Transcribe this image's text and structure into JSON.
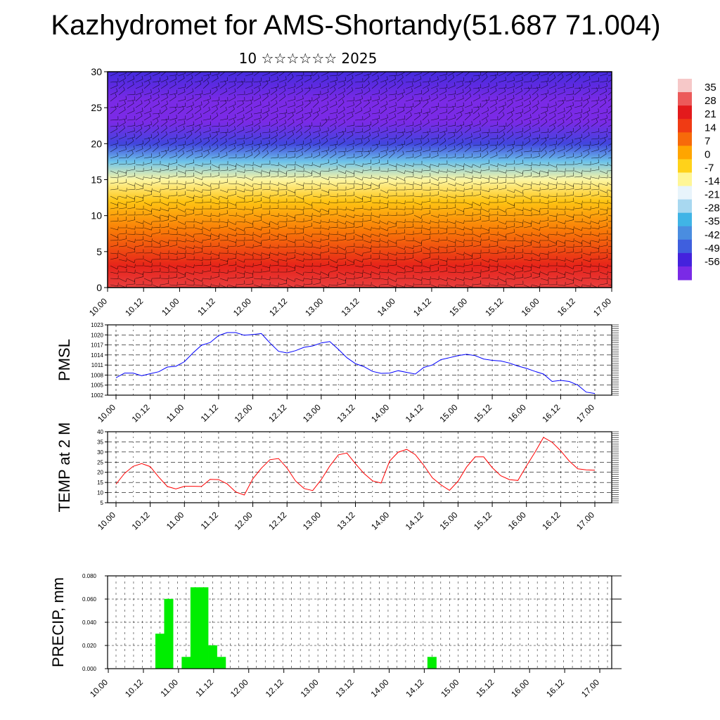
{
  "title": "Kazhydromet for AMS-Shortandy(51.687 71.004)",
  "subtitle": "10 ☆☆☆☆☆☆ 2025",
  "colors": {
    "pressure_line": "#0000ff",
    "temperature_line": "#ff0000",
    "precip_bar": "#00ee00",
    "frame": "#000000",
    "grid": "#000000"
  },
  "chart_data": [
    {
      "type": "heatmap",
      "title": "",
      "ylabel": "",
      "ylim": [
        0,
        30
      ],
      "yticks": [
        "0",
        "5",
        "10",
        "15",
        "20",
        "25",
        "30"
      ],
      "xticks": [
        "10.00",
        "10.12",
        "11.00",
        "11.12",
        "12.00",
        "12.12",
        "13.00",
        "13.12",
        "14.00",
        "14.12",
        "15.00",
        "15.12",
        "16.00",
        "16.12",
        "17.00"
      ],
      "overlay": "wind barbs",
      "colorbar": {
        "labels": [
          "35",
          "28",
          "21",
          "14",
          "7",
          "0",
          "-7",
          "-14",
          "-21",
          "-28",
          "-35",
          "-42",
          "-49",
          "-56"
        ],
        "colors": [
          "#f6c8c8",
          "#ec5a5a",
          "#e31a1c",
          "#f03b14",
          "#f76a0a",
          "#ffa500",
          "#ffd21a",
          "#fff696",
          "#e8f4fb",
          "#a8d8f0",
          "#40b4e6",
          "#4a8de0",
          "#3f5fde",
          "#4422dd",
          "#7a2ae6"
        ]
      },
      "levels_km": [
        "0",
        "5",
        "10",
        "15",
        "20",
        "25",
        "30"
      ],
      "temperature_profile_C": [
        32,
        26,
        12,
        2,
        -8,
        -25,
        -45,
        -58,
        -56,
        -48
      ],
      "profile_heights_km": [
        0,
        3,
        8,
        12,
        15,
        17.5,
        20,
        23,
        26,
        30
      ]
    },
    {
      "type": "line",
      "ylabel": "PMSL",
      "ylim": [
        1002,
        1023
      ],
      "yticks": [
        "1002",
        "1005",
        "1008",
        "1011",
        "1014",
        "1017",
        "1020",
        "1023"
      ],
      "xticks": [
        "10.00",
        "10.12",
        "11.00",
        "11.12",
        "12.00",
        "12.12",
        "13.00",
        "13.12",
        "14.00",
        "14.12",
        "15.00",
        "15.12",
        "16.00",
        "16.12",
        "17.00"
      ],
      "x_hours": [
        0,
        3,
        6,
        9,
        12,
        15,
        18,
        21,
        24,
        27,
        30,
        33,
        36,
        39,
        42,
        45,
        48,
        51,
        54,
        57,
        60,
        63,
        66,
        69,
        72,
        75,
        78,
        81,
        84,
        87,
        90,
        93,
        96,
        99,
        102,
        105,
        108,
        111,
        114,
        117,
        120,
        123,
        126,
        129,
        132,
        135,
        138,
        141,
        144,
        147,
        150,
        153,
        156,
        159,
        162,
        165,
        168
      ],
      "series": [
        {
          "values": [
            1007.2,
            1008.6,
            1008.6,
            1007.8,
            1008.4,
            1009.0,
            1010.4,
            1010.6,
            1012.0,
            1014.6,
            1016.9,
            1017.7,
            1019.8,
            1020.7,
            1020.7,
            1019.9,
            1020.1,
            1020.4,
            1017.6,
            1015.1,
            1014.6,
            1015.3,
            1016.3,
            1016.7,
            1017.6,
            1018.0,
            1015.7,
            1013.2,
            1011.4,
            1010.5,
            1009.1,
            1008.5,
            1008.6,
            1009.3,
            1008.8,
            1008.3,
            1010.3,
            1011.0,
            1012.6,
            1013.2,
            1013.8,
            1014.2,
            1013.8,
            1012.8,
            1012.4,
            1012.2,
            1011.6,
            1010.7,
            1010.0,
            1009.1,
            1008.3,
            1006.1,
            1006.4,
            1006.1,
            1005.0,
            1002.9,
            1002.5
          ]
        }
      ]
    },
    {
      "type": "line",
      "ylabel": "TEMP at 2 M",
      "ylim": [
        5,
        40
      ],
      "yticks": [
        "5",
        "10",
        "15",
        "20",
        "25",
        "30",
        "35",
        "40"
      ],
      "xticks": [
        "10.00",
        "10.12",
        "11.00",
        "11.12",
        "12.00",
        "12.12",
        "13.00",
        "13.12",
        "14.00",
        "14.12",
        "15.00",
        "15.12",
        "16.00",
        "16.12",
        "17.00"
      ],
      "x_hours": [
        0,
        3,
        6,
        9,
        12,
        15,
        18,
        21,
        24,
        27,
        30,
        33,
        36,
        39,
        42,
        45,
        48,
        51,
        54,
        57,
        60,
        63,
        66,
        69,
        72,
        75,
        78,
        81,
        84,
        87,
        90,
        93,
        96,
        99,
        102,
        105,
        108,
        111,
        114,
        117,
        120,
        123,
        126,
        129,
        132,
        135,
        138,
        141,
        144,
        147,
        150,
        153,
        156,
        159,
        162,
        165,
        168
      ],
      "series": [
        {
          "values": [
            14.2,
            19.5,
            22.9,
            24.3,
            22.8,
            17.6,
            13.0,
            11.8,
            13.1,
            13.1,
            13.0,
            16.5,
            16.4,
            14.3,
            10.3,
            8.8,
            16.8,
            22.0,
            26.2,
            26.8,
            22.1,
            15.7,
            12.0,
            11.0,
            16.4,
            23.1,
            28.6,
            29.5,
            24.2,
            19.4,
            15.8,
            14.7,
            25.5,
            29.9,
            31.3,
            28.7,
            23.4,
            17.3,
            13.8,
            11.1,
            15.6,
            22.6,
            27.6,
            27.6,
            22.3,
            18.3,
            16.4,
            16.0,
            23.1,
            29.9,
            37.2,
            34.8,
            30.6,
            25.6,
            21.7,
            21.2,
            21.0
          ]
        }
      ]
    },
    {
      "type": "bar",
      "ylabel": "PRECIP, mm",
      "ylim": [
        0,
        0.08
      ],
      "yticks": [
        "0.000",
        "0.020",
        "0.040",
        "0.060",
        "0.080"
      ],
      "xticks": [
        "10.00",
        "10.12",
        "11.00",
        "11.12",
        "12.00",
        "12.12",
        "13.00",
        "13.12",
        "14.00",
        "14.12",
        "15.00",
        "15.12",
        "16.00",
        "16.12",
        "17.00"
      ],
      "bar_width_hours": 3,
      "x_hours": [
        15,
        18,
        24,
        27,
        30,
        33,
        36,
        108
      ],
      "values": [
        0.03,
        0.06,
        0.01,
        0.07,
        0.07,
        0.02,
        0.01,
        0.01
      ]
    }
  ]
}
